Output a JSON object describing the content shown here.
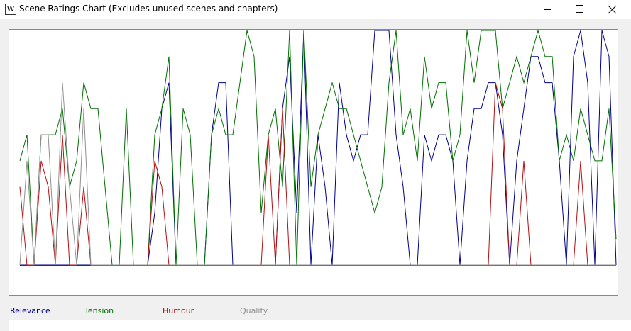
{
  "window": {
    "title": "Scene Ratings Chart (Excludes unused scenes and chapters)"
  },
  "chart_data": {
    "type": "line",
    "ylim": [
      0,
      9
    ],
    "series": [
      {
        "name": "Relevance",
        "color": "#00008b",
        "values": [
          0,
          0,
          0,
          0,
          0,
          0,
          0,
          0,
          0,
          0,
          0,
          0,
          0,
          0,
          0,
          0,
          0,
          0,
          0,
          2,
          6,
          7,
          0,
          0,
          0,
          0,
          0,
          5,
          7,
          7,
          0,
          0,
          0,
          0,
          0,
          0,
          0,
          6,
          8,
          2,
          9,
          0,
          5,
          3,
          0,
          7,
          5,
          4,
          5,
          5,
          9,
          9,
          9,
          5,
          3,
          0,
          0,
          5,
          4,
          5,
          5,
          4,
          0,
          4,
          6,
          6,
          7,
          7,
          5,
          0,
          4,
          6,
          8,
          8,
          7,
          7,
          4,
          0,
          8,
          9,
          7,
          0,
          9,
          8,
          0
        ]
      },
      {
        "name": "Tension",
        "color": "#007000",
        "values": [
          4,
          5,
          0,
          5,
          5,
          5,
          6,
          3,
          4,
          7,
          6,
          6,
          3,
          0,
          0,
          6,
          0,
          0,
          0,
          5,
          6,
          8,
          0,
          6,
          5,
          0,
          0,
          5,
          6,
          5,
          5,
          7,
          9,
          8,
          2,
          5,
          6,
          3,
          9,
          0,
          9,
          3,
          5,
          6,
          7,
          6,
          6,
          5,
          4,
          3,
          2,
          3,
          7,
          9,
          5,
          6,
          4,
          8,
          6,
          7,
          7,
          4,
          5,
          9,
          7,
          9,
          9,
          9,
          6,
          7,
          8,
          7,
          8,
          9,
          8,
          8,
          4,
          5,
          4,
          6,
          5,
          4,
          4,
          6,
          1
        ]
      },
      {
        "name": "Humour",
        "color": "#b01010",
        "values": [
          3,
          0,
          0,
          4,
          3,
          0,
          5,
          0,
          0,
          3,
          0,
          0,
          0,
          0,
          0,
          0,
          0,
          0,
          0,
          4,
          3,
          0,
          0,
          0,
          0,
          0,
          0,
          0,
          0,
          0,
          0,
          0,
          0,
          0,
          0,
          5,
          0,
          6,
          0,
          0,
          0,
          0,
          0,
          0,
          0,
          0,
          0,
          0,
          0,
          0,
          0,
          0,
          0,
          0,
          0,
          0,
          0,
          0,
          0,
          0,
          0,
          0,
          0,
          0,
          0,
          0,
          0,
          7,
          6,
          0,
          0,
          4,
          0,
          0,
          0,
          0,
          0,
          0,
          0,
          4,
          0,
          0,
          0,
          0,
          0
        ]
      },
      {
        "name": "Quality",
        "color": "#909090",
        "values": [
          0,
          4,
          0,
          5,
          5,
          0,
          7,
          3,
          0,
          6,
          0,
          0,
          0,
          0,
          0,
          0,
          0,
          0,
          0,
          0,
          0,
          0,
          0,
          0,
          0,
          0,
          0,
          0,
          0,
          0,
          0,
          0,
          0,
          0,
          0,
          0,
          0,
          0,
          0,
          0,
          0,
          0,
          0,
          0,
          0,
          0,
          0,
          0,
          0,
          0,
          0,
          0,
          0,
          0,
          0,
          0,
          0,
          0,
          0,
          0,
          0,
          0,
          0,
          0,
          0,
          0,
          0,
          0,
          0,
          0,
          0,
          0,
          0,
          0,
          0,
          0,
          0,
          0,
          0,
          0,
          0,
          0,
          0,
          0,
          0
        ]
      }
    ]
  }
}
